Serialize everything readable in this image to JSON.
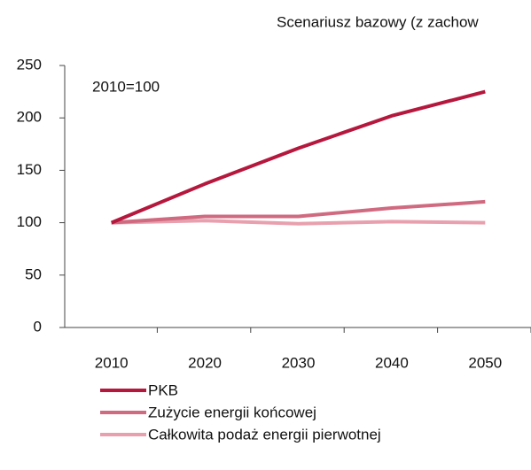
{
  "chart_data": {
    "type": "line",
    "title": "Scenariusz bazowy (z zachow",
    "annotation": "2010=100",
    "categories": [
      "2010",
      "2020",
      "2030",
      "2040",
      "2050"
    ],
    "series": [
      {
        "name": "PKB",
        "color": "#b5173d",
        "values": [
          100,
          137,
          171,
          202,
          225
        ]
      },
      {
        "name": "Zużycie energii końcowej",
        "color": "#d06a80",
        "values": [
          100,
          106,
          106,
          114,
          120
        ]
      },
      {
        "name": "Całkowita podaż energii pierwotnej",
        "color": "#e8a0ae",
        "values": [
          100,
          102,
          99,
          101,
          100
        ]
      }
    ],
    "ylim": [
      0,
      250
    ],
    "yticks": [
      0,
      50,
      100,
      150,
      200,
      250
    ],
    "grid": false,
    "legend": "bottom"
  }
}
